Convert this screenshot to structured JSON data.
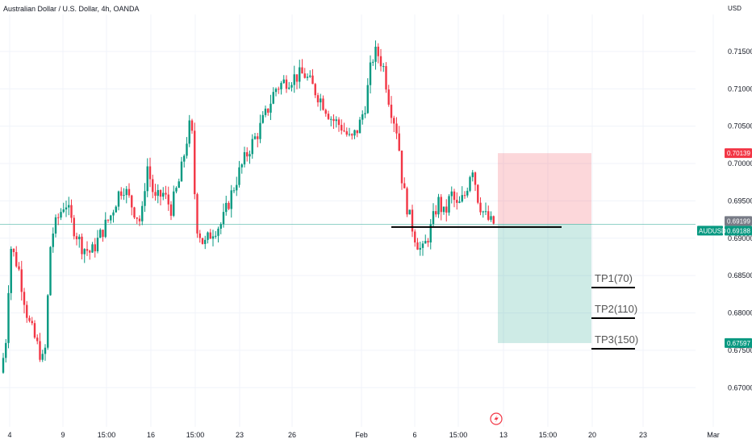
{
  "header": {
    "title": "Australian Dollar / U.S. Dollar, 4h, OANDA",
    "currency": "USD"
  },
  "chart_data": {
    "type": "candlestick",
    "ylim": [
      0.66475,
      0.71995
    ],
    "y_ticks": [
      "0.71500",
      "0.71000",
      "0.70500",
      "0.70000",
      "0.69500",
      "0.69000",
      "0.68500",
      "0.68000",
      "0.67500",
      "0.67000"
    ],
    "x_ticks": [
      "4",
      "9",
      "15:00",
      "16",
      "15:00",
      "23",
      "26",
      "Feb",
      "6",
      "15:00",
      "13",
      "15:00",
      "20",
      "23",
      "Mar"
    ],
    "price_badges": [
      {
        "label": "",
        "value": "0.70139",
        "color": "#f23645"
      },
      {
        "label": "",
        "value": "0.69199",
        "color": "#787b86"
      },
      {
        "label": "AUDUSD",
        "value": "0.69188",
        "color": "#089981"
      },
      {
        "label": "",
        "value": "0.67597",
        "color": "#089981"
      }
    ],
    "trade": {
      "entry": 0.69188,
      "stop": 0.70139,
      "target": 0.67597
    },
    "support_level": 0.6915,
    "take_profits": [
      "TP1(70)",
      "TP2(110)",
      "TP3(150)"
    ],
    "up_color": "#089981",
    "down_color": "#f23645",
    "candles": []
  }
}
